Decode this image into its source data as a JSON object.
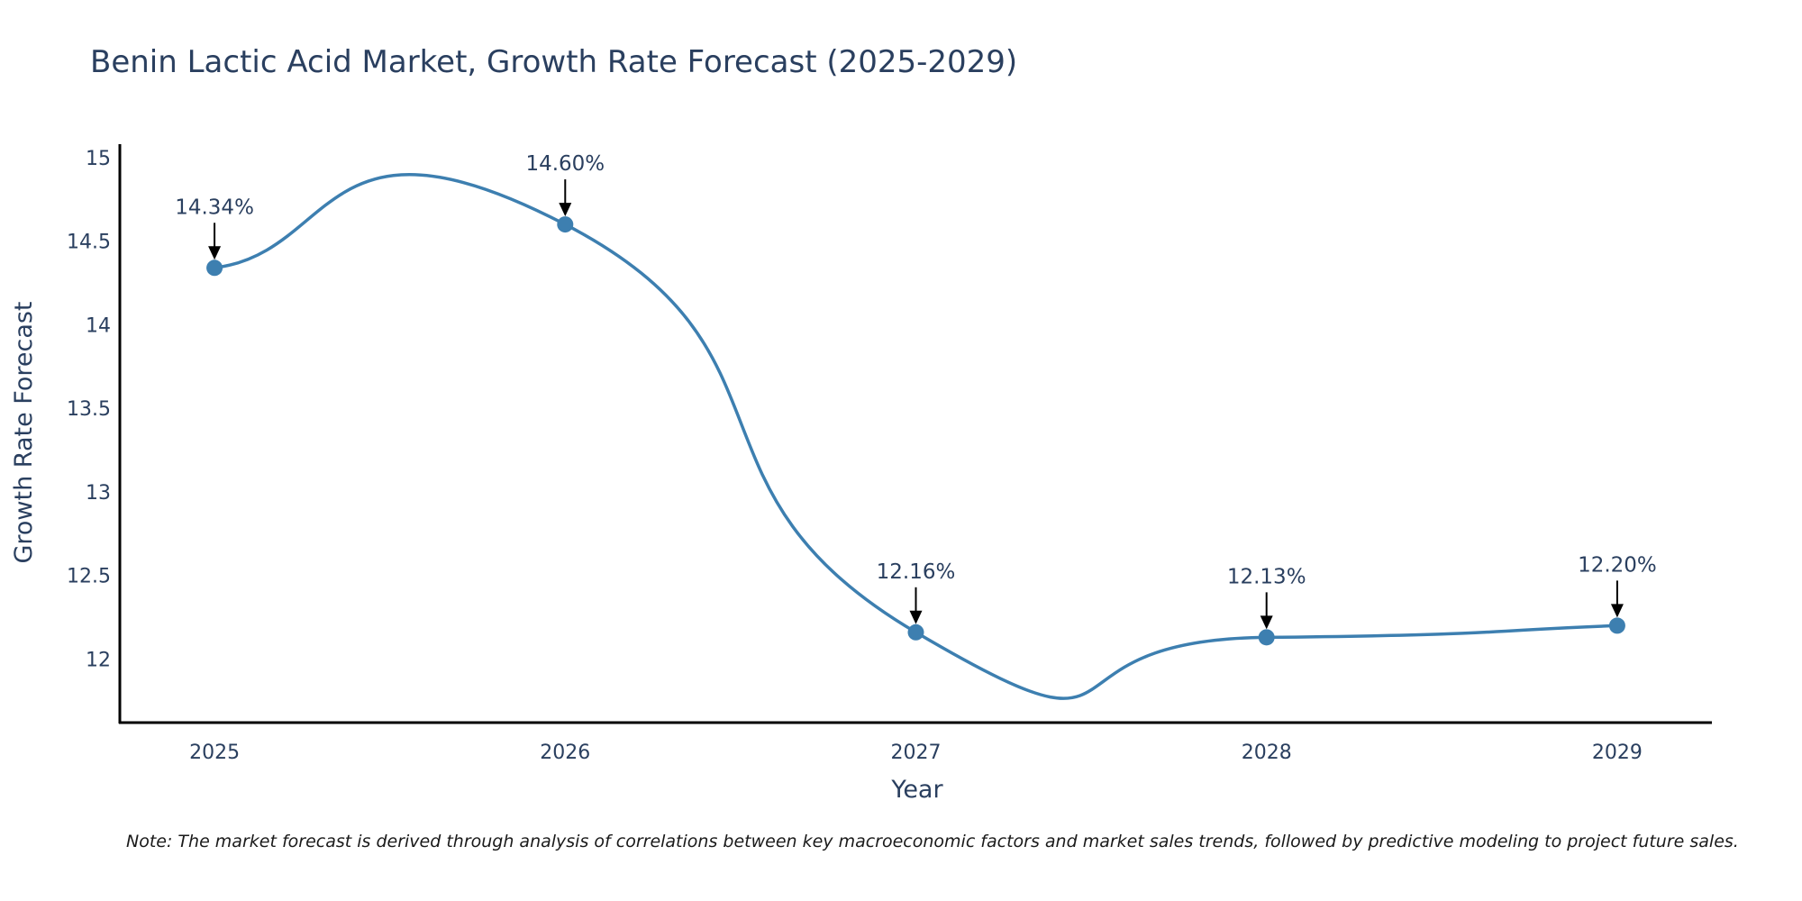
{
  "chart_data": {
    "type": "line",
    "title": "Benin Lactic Acid Market, Growth Rate Forecast (2025-2029)",
    "xlabel": "Year",
    "ylabel": "Growth Rate Forecast",
    "categories": [
      "2025",
      "2026",
      "2027",
      "2028",
      "2029"
    ],
    "x": [
      2025,
      2026,
      2027,
      2028,
      2029
    ],
    "values": [
      14.34,
      14.6,
      12.16,
      12.13,
      12.2
    ],
    "labels": [
      "14.34%",
      "14.60%",
      "12.16%",
      "12.13%",
      "12.20%"
    ],
    "ylim": [
      11.62,
      15.08
    ],
    "xlim": [
      2024.73,
      2029.27
    ],
    "yticks": [
      12,
      12.5,
      13,
      13.5,
      14,
      14.5,
      15
    ],
    "ytick_labels": [
      "12",
      "12.5",
      "13",
      "13.5",
      "14",
      "14.5",
      "15"
    ],
    "line_shape": "spline",
    "grid": false,
    "colors": {
      "line": "#3d7fb0",
      "marker": "#3d7fb0",
      "axis": "#000000",
      "arrow": "#000000"
    }
  },
  "note": "Note: The market forecast is derived through analysis of correlations between key macroeconomic factors and market sales trends, followed by predictive modeling to project future sales."
}
